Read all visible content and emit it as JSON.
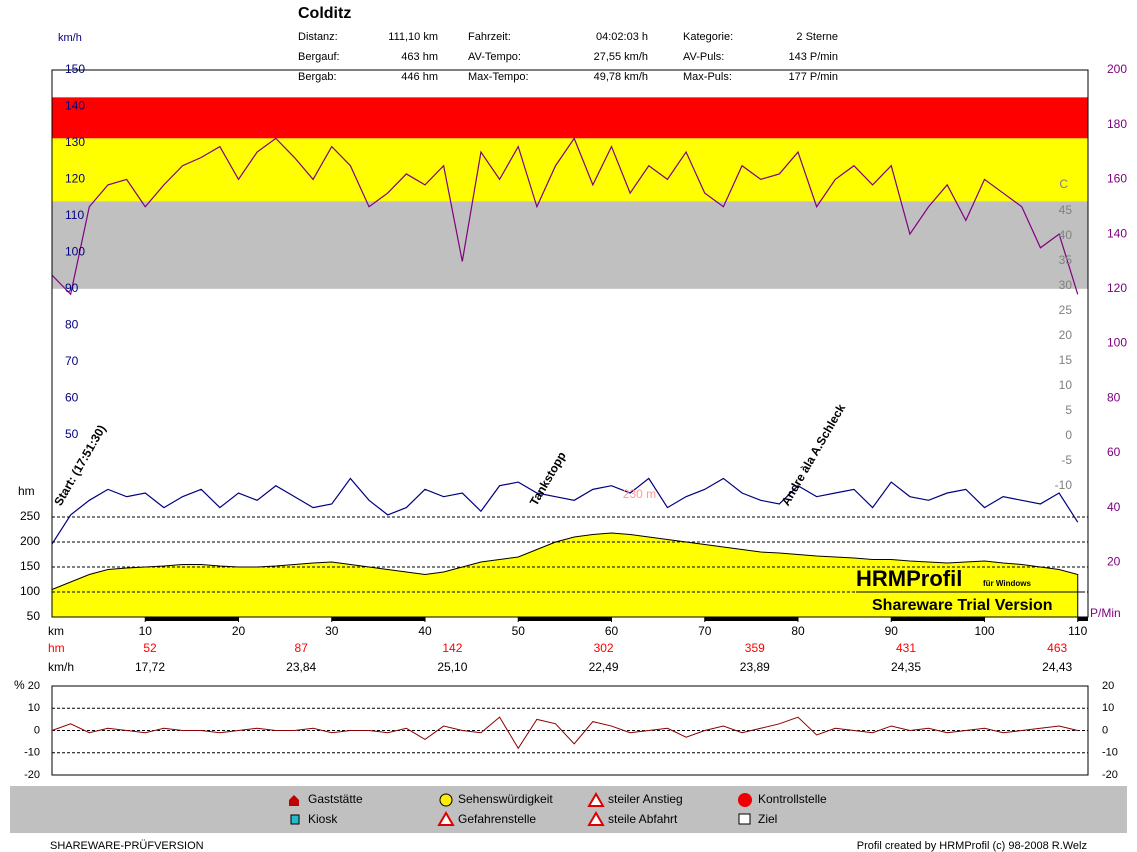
{
  "header": {
    "title": "Colditz",
    "stats": [
      [
        "Distanz:",
        "111,10 km",
        "Fahrzeit:",
        "04:02:03 h",
        "Kategorie:",
        "2 Sterne"
      ],
      [
        "Bergauf:",
        "463 hm",
        "AV-Tempo:",
        "27,55 km/h",
        "AV-Puls:",
        "143 P/min"
      ],
      [
        "Bergab:",
        "446 hm",
        "Max-Tempo:",
        "49,78 km/h",
        "Max-Puls:",
        "177 P/min"
      ]
    ]
  },
  "chart_data": [
    {
      "type": "line",
      "x_label": "km",
      "xlim": [
        0,
        111.1
      ],
      "xticks": [
        10,
        20,
        30,
        40,
        50,
        60,
        70,
        80,
        90,
        100,
        110
      ],
      "y_label": "km/h",
      "ylim": [
        0,
        150
      ],
      "yticks": [
        50,
        60,
        70,
        80,
        90,
        100,
        110,
        120,
        130,
        140,
        150
      ],
      "y2_label": "P/Min",
      "y2lim": [
        0,
        200
      ],
      "y2ticks": [
        20,
        40,
        60,
        80,
        100,
        120,
        140,
        160,
        180,
        200
      ],
      "y3_label": "hm",
      "y3lim": [
        50,
        250
      ],
      "y3ticks": [
        50,
        100,
        150,
        200,
        250
      ],
      "y4_label": "C",
      "y4lim": [
        -10,
        45
      ],
      "y4ticks": [
        -10,
        -5,
        0,
        5,
        10,
        15,
        20,
        25,
        30,
        35,
        40,
        45
      ],
      "zones": [
        {
          "from": 175,
          "to": 190,
          "color": "#ff0000"
        },
        {
          "from": 152,
          "to": 175,
          "color": "#ffff00"
        },
        {
          "from": 120,
          "to": 152,
          "color": "#c0c0c0"
        }
      ],
      "x": [
        0,
        2,
        4,
        6,
        8,
        10,
        12,
        14,
        16,
        18,
        20,
        22,
        24,
        26,
        28,
        30,
        32,
        34,
        36,
        38,
        40,
        42,
        44,
        46,
        48,
        50,
        52,
        54,
        56,
        58,
        60,
        62,
        64,
        66,
        68,
        70,
        72,
        74,
        76,
        78,
        80,
        82,
        84,
        86,
        88,
        90,
        92,
        94,
        96,
        98,
        100,
        102,
        104,
        106,
        108,
        110
      ],
      "series": [
        {
          "name": "hm",
          "axis": "y3",
          "color": "#ffff00",
          "values": [
            105,
            120,
            135,
            145,
            148,
            150,
            152,
            155,
            155,
            152,
            150,
            150,
            152,
            155,
            158,
            160,
            155,
            150,
            145,
            140,
            135,
            140,
            150,
            160,
            165,
            170,
            185,
            200,
            210,
            215,
            218,
            215,
            210,
            205,
            200,
            195,
            190,
            185,
            180,
            178,
            175,
            172,
            170,
            168,
            165,
            165,
            162,
            160,
            158,
            160,
            162,
            158,
            155,
            150,
            145,
            135
          ]
        },
        {
          "name": "P/Min",
          "axis": "y2",
          "color": "#800080",
          "values": [
            125,
            118,
            150,
            158,
            160,
            150,
            158,
            165,
            168,
            172,
            160,
            170,
            175,
            168,
            160,
            172,
            165,
            150,
            155,
            162,
            158,
            165,
            130,
            170,
            160,
            172,
            150,
            165,
            175,
            158,
            172,
            155,
            165,
            160,
            170,
            155,
            150,
            165,
            160,
            162,
            170,
            150,
            160,
            165,
            158,
            165,
            140,
            150,
            158,
            145,
            160,
            155,
            150,
            135,
            140,
            118
          ]
        },
        {
          "name": "km/h",
          "axis": "y",
          "color": "#000080",
          "values": [
            20,
            28,
            32,
            35,
            33,
            34,
            30,
            33,
            35,
            30,
            34,
            32,
            36,
            33,
            30,
            31,
            38,
            32,
            28,
            30,
            35,
            33,
            34,
            29,
            36,
            37,
            34,
            33,
            32,
            35,
            36,
            34,
            38,
            30,
            33,
            35,
            38,
            34,
            32,
            31,
            36,
            33,
            34,
            35,
            30,
            37,
            33,
            32,
            34,
            35,
            30,
            33,
            32,
            31,
            34,
            26
          ]
        }
      ],
      "annotations": [
        {
          "text": "Start: (17:51:30)",
          "x": 0
        },
        {
          "text": "Tankstopp",
          "x": 51
        },
        {
          "text": "Andre àla A.Schleck",
          "x": 78
        },
        {
          "text": "230 m",
          "x": 63
        }
      ],
      "segments": [
        {
          "name": "hm",
          "color": "#ff0000",
          "values": [
            52,
            87,
            142,
            302,
            359,
            431,
            463
          ]
        },
        {
          "name": "km/h",
          "color": "#000000",
          "values": [
            17.72,
            23.84,
            25.1,
            22.49,
            23.89,
            24.35,
            24.43
          ],
          "value_labels": [
            "17,72",
            "23,84",
            "25,10",
            "22,49",
            "23,89",
            "24,35",
            "24,43"
          ]
        }
      ]
    },
    {
      "type": "line",
      "y_label": "%",
      "xlim": [
        0,
        111.1
      ],
      "ylim": [
        -20,
        20
      ],
      "yticks": [
        -20,
        -10,
        0,
        10,
        20
      ],
      "x": [
        0,
        2,
        4,
        6,
        8,
        10,
        12,
        14,
        16,
        18,
        20,
        22,
        24,
        26,
        28,
        30,
        32,
        34,
        36,
        38,
        40,
        42,
        44,
        46,
        48,
        50,
        52,
        54,
        56,
        58,
        60,
        62,
        64,
        66,
        68,
        70,
        72,
        74,
        76,
        78,
        80,
        82,
        84,
        86,
        88,
        90,
        92,
        94,
        96,
        98,
        100,
        102,
        104,
        106,
        108,
        110
      ],
      "series": [
        {
          "name": "%",
          "color": "#8b0000",
          "values": [
            0,
            3,
            -1,
            1,
            0,
            -1,
            1,
            0,
            0,
            -1,
            0,
            1,
            0,
            0,
            1,
            -1,
            0,
            0,
            -1,
            1,
            -4,
            2,
            0,
            -1,
            6,
            -8,
            5,
            3,
            -6,
            4,
            2,
            -1,
            0,
            1,
            -3,
            0,
            2,
            -1,
            1,
            3,
            6,
            -2,
            1,
            0,
            -1,
            2,
            0,
            1,
            -1,
            0,
            1,
            -1,
            0,
            1,
            2,
            0
          ]
        }
      ]
    }
  ],
  "watermark": {
    "brand": "HRMProfil",
    "sub": "für Windows",
    "note": "Shareware Trial  Version"
  },
  "legend": [
    "Gaststätte",
    "Kiosk",
    "Sehenswürdigkeit",
    "Gefahrenstelle",
    "steiler Anstieg",
    "steile Abfahrt",
    "Kontrollstelle",
    "Ziel"
  ],
  "footer": {
    "left": "SHAREWARE-PRÜFVERSION",
    "right": "Profil created by HRMProfil (c) 98-2008 R.Welz"
  }
}
